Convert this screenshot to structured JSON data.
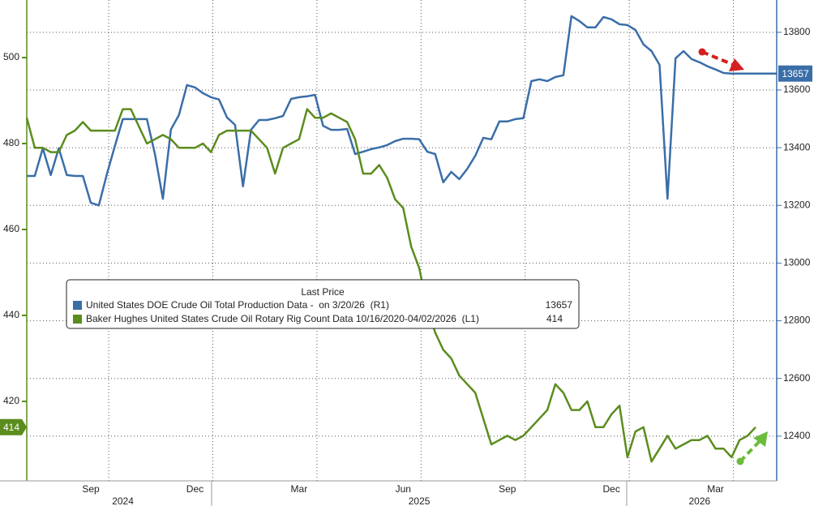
{
  "chart_data": {
    "type": "line",
    "legend_title": "Last Price",
    "categories": [
      null,
      null,
      null,
      null,
      null,
      null,
      null,
      null,
      "Sep",
      null,
      null,
      null,
      null,
      null,
      null,
      null,
      null,
      null,
      null,
      null,
      null,
      "Dec",
      null,
      null,
      null,
      null,
      null,
      null,
      null,
      null,
      null,
      null,
      null,
      null,
      "Mar",
      null,
      null,
      null,
      null,
      null,
      null,
      null,
      null,
      null,
      null,
      null,
      null,
      "Jun",
      null,
      null,
      null,
      null,
      null,
      null,
      null,
      null,
      null,
      null,
      null,
      null,
      "Sep",
      null,
      null,
      null,
      null,
      null,
      null,
      null,
      null,
      null,
      null,
      null,
      null,
      "Dec",
      null,
      null,
      null,
      null,
      null,
      null,
      null,
      null,
      null,
      null,
      null,
      null,
      "Mar",
      null,
      null,
      null,
      null,
      null
    ],
    "year_labels": [
      null,
      null,
      null,
      null,
      null,
      null,
      null,
      null,
      null,
      null,
      null,
      null,
      "2024",
      null,
      null,
      null,
      null,
      null,
      null,
      null,
      null,
      null,
      null,
      null,
      null,
      null,
      null,
      null,
      null,
      null,
      null,
      null,
      null,
      null,
      null,
      null,
      null,
      null,
      null,
      null,
      null,
      null,
      null,
      null,
      null,
      null,
      null,
      null,
      null,
      "2025",
      null,
      null,
      null,
      null,
      null,
      null,
      null,
      null,
      null,
      null,
      null,
      null,
      null,
      null,
      null,
      null,
      null,
      null,
      null,
      null,
      null,
      null,
      null,
      null,
      null,
      null,
      null,
      null,
      null,
      null,
      null,
      null,
      null,
      null,
      "2026",
      null,
      null,
      null,
      null,
      null,
      null,
      null
    ],
    "series": [
      {
        "name": "United States DOE Crude Oil Total Production Data -  on 3/20/26  (R1)",
        "color": "#3a6ea8",
        "axis": "y2",
        "values": [
          13302,
          13302,
          13398,
          13305,
          13398,
          13305,
          13302,
          13302,
          13209,
          13200,
          13308,
          13406,
          13499,
          13499,
          13499,
          13499,
          13378,
          13223,
          13463,
          13513,
          13617,
          13609,
          13589,
          13575,
          13567,
          13505,
          13479,
          13266,
          13462,
          13496,
          13496,
          13502,
          13510,
          13569,
          13575,
          13578,
          13583,
          13476,
          13462,
          13462,
          13465,
          13378,
          13386,
          13395,
          13401,
          13409,
          13423,
          13431,
          13431,
          13429,
          13386,
          13378,
          13280,
          13316,
          13291,
          13327,
          13372,
          13434,
          13429,
          13491,
          13491,
          13499,
          13502,
          13631,
          13637,
          13631,
          13645,
          13651,
          13856,
          13839,
          13817,
          13817,
          13853,
          13845,
          13828,
          13825,
          13808,
          13758,
          13735,
          13687,
          13223,
          13710,
          13735,
          13707,
          13696,
          13682,
          13671,
          13659,
          13657,
          null,
          null,
          null
        ]
      },
      {
        "name": "Baker Hughes United States Crude Oil Rotary Rig Count Data 10/16/2020-04/02/2026  (L1)",
        "color": "#5b8c1e",
        "values": [
          486,
          479,
          479,
          478,
          478,
          482,
          483,
          485,
          483,
          483,
          483,
          483,
          488,
          488,
          484,
          480,
          481,
          482,
          481,
          479,
          479,
          479,
          480,
          478,
          482,
          483,
          483,
          483,
          483,
          481,
          479,
          473,
          479,
          480,
          481,
          488,
          486,
          486,
          487,
          486,
          485,
          481,
          473,
          473,
          475,
          472,
          467,
          465,
          456,
          451,
          442,
          436,
          432,
          430,
          426,
          424,
          422,
          416,
          410,
          411,
          412,
          411,
          412,
          414,
          416,
          418,
          424,
          422,
          418,
          418,
          420,
          414,
          414,
          417,
          419,
          407,
          413,
          414,
          406,
          409,
          412,
          409,
          410,
          411,
          411,
          412,
          409,
          409,
          407,
          411,
          412,
          414
        ]
      }
    ],
    "ylim": [
      401.5,
      513.4
    ],
    "yticks": [
      420,
      440,
      460,
      480,
      500
    ],
    "y2lim": [
      12245,
      13912
    ],
    "y2ticks": [
      12400,
      12600,
      12800,
      13000,
      13200,
      13400,
      13600,
      13800
    ],
    "grid": true
  }
}
